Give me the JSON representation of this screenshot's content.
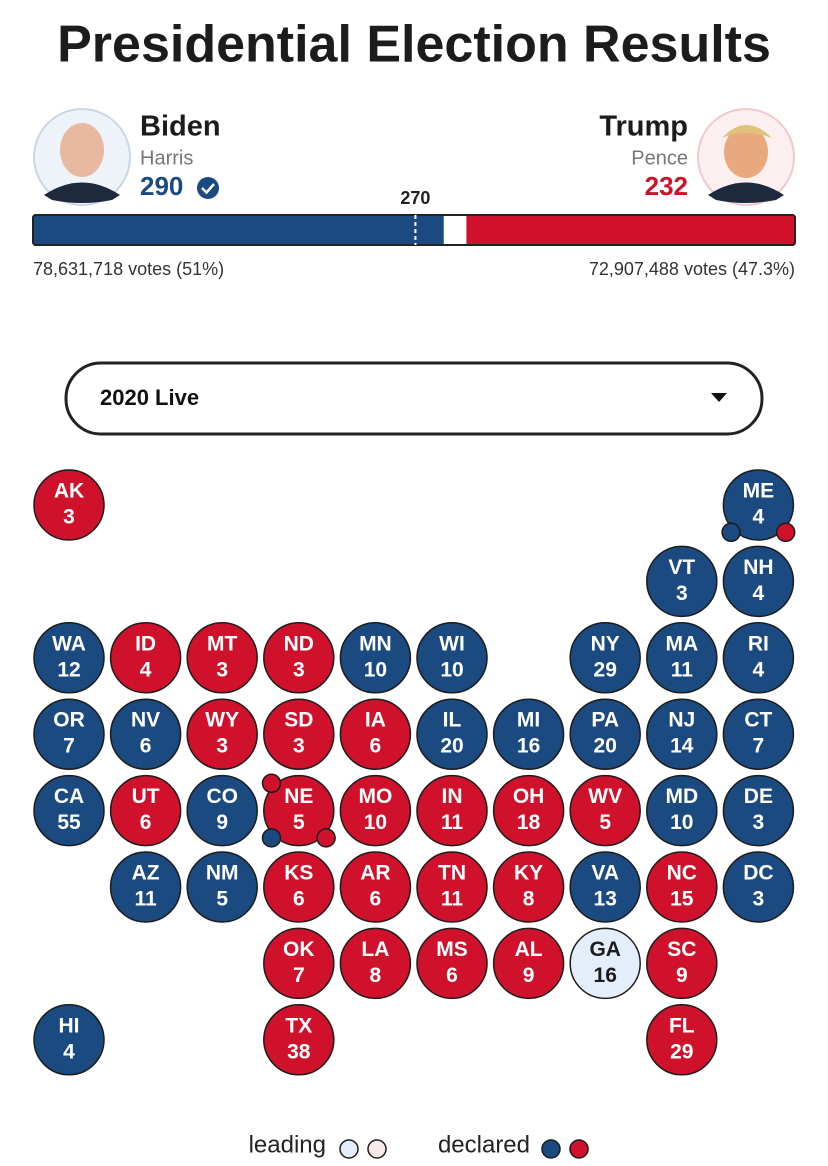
{
  "header": {
    "title": "Presidential Election Results"
  },
  "colors": {
    "D": "#1b4a80",
    "R": "#d0112b",
    "D_leading": "#e3eefa",
    "R_leading": "#fbeaec"
  },
  "candidates": [
    {
      "name": "Biden",
      "running_mate": "Harris",
      "electoral_votes": 290,
      "votes_label": "78,631,718 votes (51%)",
      "party": "D"
    },
    {
      "name": "Trump",
      "running_mate": "Pence",
      "electoral_votes": 232,
      "votes_label": "72,907,488 votes (47.3%)",
      "party": "R"
    }
  ],
  "threshold": 270,
  "dropdown": {
    "selected": "2020 Live"
  },
  "states": [
    {
      "abbr": "AK",
      "ev": 3,
      "party": "R"
    },
    {
      "abbr": "ME",
      "ev": 4,
      "party": "D",
      "districts": [
        "D",
        "R"
      ]
    },
    {
      "abbr": "VT",
      "ev": 3,
      "party": "D"
    },
    {
      "abbr": "NH",
      "ev": 4,
      "party": "D"
    },
    {
      "abbr": "WA",
      "ev": 12,
      "party": "D"
    },
    {
      "abbr": "ID",
      "ev": 4,
      "party": "R"
    },
    {
      "abbr": "MT",
      "ev": 3,
      "party": "R"
    },
    {
      "abbr": "ND",
      "ev": 3,
      "party": "R"
    },
    {
      "abbr": "MN",
      "ev": 10,
      "party": "D"
    },
    {
      "abbr": "WI",
      "ev": 10,
      "party": "D"
    },
    {
      "abbr": "NY",
      "ev": 29,
      "party": "D"
    },
    {
      "abbr": "MA",
      "ev": 11,
      "party": "D"
    },
    {
      "abbr": "RI",
      "ev": 4,
      "party": "D"
    },
    {
      "abbr": "OR",
      "ev": 7,
      "party": "D"
    },
    {
      "abbr": "NV",
      "ev": 6,
      "party": "D"
    },
    {
      "abbr": "WY",
      "ev": 3,
      "party": "R"
    },
    {
      "abbr": "SD",
      "ev": 3,
      "party": "R"
    },
    {
      "abbr": "IA",
      "ev": 6,
      "party": "R"
    },
    {
      "abbr": "IL",
      "ev": 20,
      "party": "D"
    },
    {
      "abbr": "MI",
      "ev": 16,
      "party": "D"
    },
    {
      "abbr": "PA",
      "ev": 20,
      "party": "D"
    },
    {
      "abbr": "NJ",
      "ev": 14,
      "party": "D"
    },
    {
      "abbr": "CT",
      "ev": 7,
      "party": "D"
    },
    {
      "abbr": "CA",
      "ev": 55,
      "party": "D"
    },
    {
      "abbr": "UT",
      "ev": 6,
      "party": "R"
    },
    {
      "abbr": "CO",
      "ev": 9,
      "party": "D"
    },
    {
      "abbr": "NE",
      "ev": 5,
      "party": "R",
      "districts": [
        "R",
        "D",
        "R"
      ]
    },
    {
      "abbr": "MO",
      "ev": 10,
      "party": "R"
    },
    {
      "abbr": "IN",
      "ev": 11,
      "party": "R"
    },
    {
      "abbr": "OH",
      "ev": 18,
      "party": "R"
    },
    {
      "abbr": "WV",
      "ev": 5,
      "party": "R"
    },
    {
      "abbr": "MD",
      "ev": 10,
      "party": "D"
    },
    {
      "abbr": "DE",
      "ev": 3,
      "party": "D"
    },
    {
      "abbr": "AZ",
      "ev": 11,
      "party": "D"
    },
    {
      "abbr": "NM",
      "ev": 5,
      "party": "D"
    },
    {
      "abbr": "KS",
      "ev": 6,
      "party": "R"
    },
    {
      "abbr": "AR",
      "ev": 6,
      "party": "R"
    },
    {
      "abbr": "TN",
      "ev": 11,
      "party": "R"
    },
    {
      "abbr": "KY",
      "ev": 8,
      "party": "R"
    },
    {
      "abbr": "VA",
      "ev": 13,
      "party": "D"
    },
    {
      "abbr": "NC",
      "ev": 15,
      "party": "R"
    },
    {
      "abbr": "DC",
      "ev": 3,
      "party": "D"
    },
    {
      "abbr": "OK",
      "ev": 7,
      "party": "R"
    },
    {
      "abbr": "LA",
      "ev": 8,
      "party": "R"
    },
    {
      "abbr": "MS",
      "ev": 6,
      "party": "R"
    },
    {
      "abbr": "AL",
      "ev": 9,
      "party": "R"
    },
    {
      "abbr": "GA",
      "ev": 16,
      "party": "D",
      "leading": true
    },
    {
      "abbr": "SC",
      "ev": 9,
      "party": "R"
    },
    {
      "abbr": "HI",
      "ev": 4,
      "party": "D"
    },
    {
      "abbr": "TX",
      "ev": 38,
      "party": "R"
    },
    {
      "abbr": "FL",
      "ev": 29,
      "party": "R"
    }
  ],
  "legend": {
    "leading": "leading",
    "declared": "declared"
  }
}
